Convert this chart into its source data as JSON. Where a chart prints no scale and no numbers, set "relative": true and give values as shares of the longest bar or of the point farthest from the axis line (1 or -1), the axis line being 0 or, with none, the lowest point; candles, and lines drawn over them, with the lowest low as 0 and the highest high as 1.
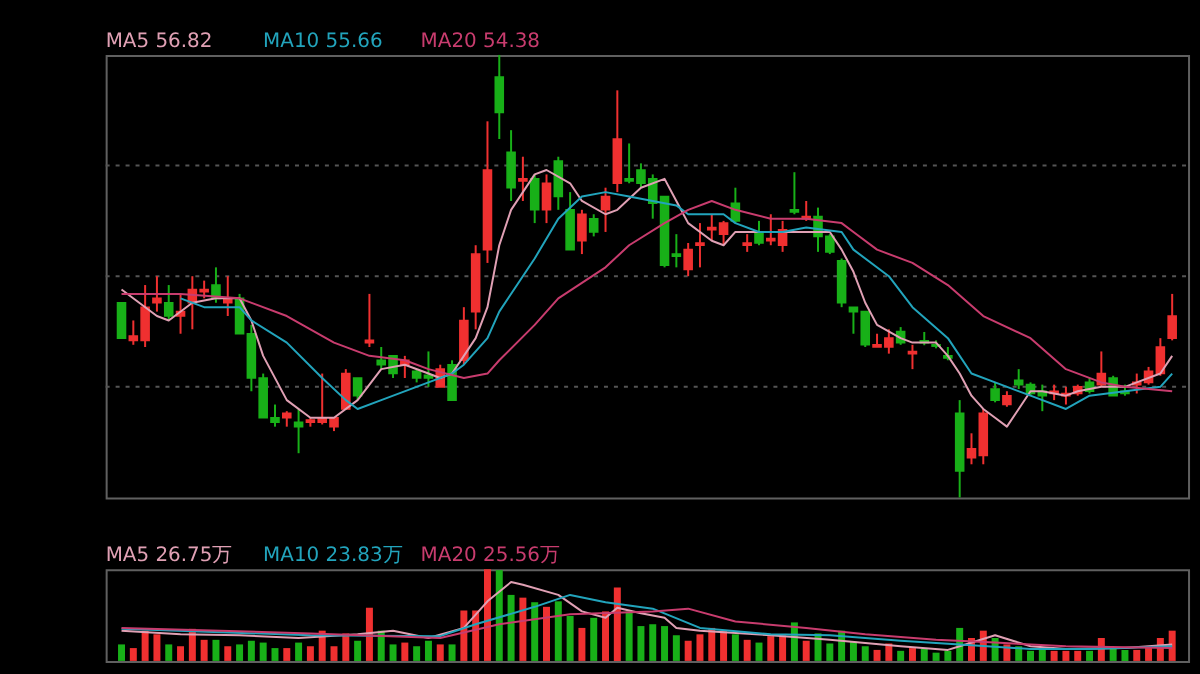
{
  "chart_data": [
    {
      "type": "candlestick",
      "relative": true,
      "grid": true,
      "categories": [
        null,
        null,
        null,
        null,
        null,
        null,
        null,
        null,
        null,
        null,
        null,
        null,
        null,
        null,
        null,
        null,
        null,
        null,
        null,
        null,
        null,
        null,
        null,
        null,
        null,
        null,
        null,
        null,
        null,
        null,
        null,
        null,
        null,
        null,
        null,
        null,
        null,
        null,
        null,
        null,
        null,
        null,
        null,
        null,
        null,
        null,
        null,
        null,
        null,
        null,
        null,
        null,
        null,
        null,
        null,
        null,
        null,
        null,
        null,
        null,
        null,
        null,
        null,
        null,
        null,
        null,
        null,
        null,
        null,
        null,
        null,
        null,
        null,
        null,
        null,
        null,
        null,
        null,
        null,
        null,
        null,
        null,
        null,
        null,
        null,
        null,
        null,
        null,
        null,
        null
      ],
      "ohlc": [
        [
          0.44,
          0.44,
          0.36,
          0.36
        ],
        [
          0.355,
          0.4,
          0.345,
          0.365
        ],
        [
          0.355,
          0.48,
          0.34,
          0.43
        ],
        [
          0.44,
          0.5,
          0.42,
          0.45
        ],
        [
          0.44,
          0.48,
          0.4,
          0.41
        ],
        [
          0.41,
          0.46,
          0.37,
          0.42
        ],
        [
          0.44,
          0.5,
          0.38,
          0.47
        ],
        [
          0.465,
          0.49,
          0.45,
          0.47
        ],
        [
          0.48,
          0.52,
          0.44,
          0.45
        ],
        [
          0.44,
          0.5,
          0.41,
          0.45
        ],
        [
          0.45,
          0.46,
          0.37,
          0.37
        ],
        [
          0.37,
          0.39,
          0.24,
          0.27
        ],
        [
          0.27,
          0.28,
          0.18,
          0.18
        ],
        [
          0.18,
          0.21,
          0.16,
          0.17
        ],
        [
          0.18,
          0.195,
          0.16,
          0.19
        ],
        [
          0.17,
          0.2,
          0.1,
          0.16
        ],
        [
          0.17,
          0.18,
          0.16,
          0.175
        ],
        [
          0.17,
          0.28,
          0.165,
          0.18
        ],
        [
          0.16,
          0.18,
          0.15,
          0.18
        ],
        [
          0.2,
          0.29,
          0.2,
          0.28
        ],
        [
          0.27,
          0.27,
          0.22,
          0.23
        ],
        [
          0.35,
          0.46,
          0.34,
          0.355
        ],
        [
          0.31,
          0.34,
          0.29,
          0.3
        ],
        [
          0.32,
          0.32,
          0.27,
          0.28
        ],
        [
          0.3,
          0.32,
          0.27,
          0.31
        ],
        [
          0.285,
          0.29,
          0.26,
          0.27
        ],
        [
          0.276,
          0.33,
          0.25,
          0.27
        ],
        [
          0.25,
          0.3,
          0.25,
          0.29
        ],
        [
          0.3,
          0.31,
          0.22,
          0.22
        ],
        [
          0.31,
          0.43,
          0.3,
          0.4
        ],
        [
          0.42,
          0.57,
          0.38,
          0.55
        ],
        [
          0.56,
          0.85,
          0.53,
          0.74
        ],
        [
          0.95,
          1.0,
          0.81,
          0.87
        ],
        [
          0.78,
          0.83,
          0.67,
          0.7
        ],
        [
          0.715,
          0.77,
          0.67,
          0.72
        ],
        [
          0.72,
          0.73,
          0.62,
          0.65
        ],
        [
          0.65,
          0.73,
          0.62,
          0.71
        ],
        [
          0.76,
          0.77,
          0.65,
          0.68
        ],
        [
          0.65,
          0.69,
          0.56,
          0.56
        ],
        [
          0.58,
          0.65,
          0.55,
          0.64
        ],
        [
          0.63,
          0.64,
          0.59,
          0.6
        ],
        [
          0.65,
          0.7,
          0.6,
          0.68
        ],
        [
          0.71,
          0.92,
          0.69,
          0.81
        ],
        [
          0.72,
          0.8,
          0.71,
          0.715
        ],
        [
          0.74,
          0.755,
          0.7,
          0.71
        ],
        [
          0.72,
          0.73,
          0.63,
          0.665
        ],
        [
          0.68,
          0.68,
          0.52,
          0.525
        ],
        [
          0.55,
          0.595,
          0.52,
          0.545
        ],
        [
          0.515,
          0.575,
          0.5,
          0.56
        ],
        [
          0.57,
          0.62,
          0.52,
          0.575
        ],
        [
          0.605,
          0.64,
          0.58,
          0.61
        ],
        [
          0.595,
          0.625,
          0.57,
          0.62
        ],
        [
          0.665,
          0.7,
          0.62,
          0.625
        ],
        [
          0.57,
          0.595,
          0.555,
          0.575
        ],
        [
          0.6,
          0.625,
          0.57,
          0.575
        ],
        [
          0.58,
          0.64,
          0.57,
          0.585
        ],
        [
          0.57,
          0.625,
          0.555,
          0.605
        ],
        [
          0.65,
          0.735,
          0.64,
          0.645
        ],
        [
          0.63,
          0.67,
          0.625,
          0.635
        ],
        [
          0.635,
          0.655,
          0.555,
          0.59
        ],
        [
          0.59,
          0.595,
          0.55,
          0.555
        ],
        [
          0.535,
          0.54,
          0.43,
          0.44
        ],
        [
          0.43,
          0.43,
          0.37,
          0.42
        ],
        [
          0.42,
          0.42,
          0.34,
          0.345
        ],
        [
          0.34,
          0.37,
          0.34,
          0.345
        ],
        [
          0.34,
          0.38,
          0.325,
          0.36
        ],
        [
          0.375,
          0.385,
          0.345,
          0.35
        ],
        [
          0.325,
          0.345,
          0.29,
          0.33
        ],
        [
          0.354,
          0.374,
          0.344,
          0.35
        ],
        [
          0.345,
          0.355,
          0.337,
          0.342
        ],
        [
          0.32,
          0.34,
          0.31,
          0.315
        ],
        [
          0.19,
          0.22,
          0.0,
          0.06
        ],
        [
          0.09,
          0.145,
          0.075,
          0.11
        ],
        [
          0.095,
          0.2,
          0.075,
          0.19
        ],
        [
          0.245,
          0.26,
          0.215,
          0.22
        ],
        [
          0.21,
          0.24,
          0.205,
          0.23
        ],
        [
          0.265,
          0.29,
          0.245,
          0.255
        ],
        [
          0.255,
          0.26,
          0.23,
          0.235
        ],
        [
          0.24,
          0.255,
          0.195,
          0.23
        ],
        [
          0.235,
          0.255,
          0.22,
          0.24
        ],
        [
          0.23,
          0.25,
          0.21,
          0.235
        ],
        [
          0.235,
          0.255,
          0.23,
          0.25
        ],
        [
          0.26,
          0.27,
          0.235,
          0.24
        ],
        [
          0.255,
          0.33,
          0.25,
          0.28
        ],
        [
          0.27,
          0.275,
          0.23,
          0.23
        ],
        [
          0.24,
          0.255,
          0.23,
          0.235
        ],
        [
          0.255,
          0.28,
          0.235,
          0.26
        ],
        [
          0.26,
          0.295,
          0.255,
          0.285
        ],
        [
          0.28,
          0.36,
          0.275,
          0.34
        ],
        [
          0.36,
          0.46,
          0.355,
          0.41
        ]
      ],
      "colors": [
        "#18b018",
        "#f03030",
        "#f03030",
        "#f03030",
        "#18b018",
        "#f03030",
        "#f03030",
        "#f03030",
        "#18b018",
        "#f03030",
        "#18b018",
        "#18b018",
        "#18b018",
        "#18b018",
        "#f03030",
        "#18b018",
        "#f03030",
        "#f03030",
        "#f03030",
        "#f03030",
        "#18b018",
        "#f03030",
        "#18b018",
        "#18b018",
        "#f03030",
        "#18b018",
        "#18b018",
        "#f03030",
        "#18b018",
        "#f03030",
        "#f03030",
        "#f03030",
        "#18b018",
        "#18b018",
        "#f03030",
        "#18b018",
        "#f03030",
        "#18b018",
        "#18b018",
        "#f03030",
        "#18b018",
        "#f03030",
        "#f03030",
        "#18b018",
        "#18b018",
        "#18b018",
        "#18b018",
        "#18b018",
        "#f03030",
        "#f03030",
        "#f03030",
        "#f03030",
        "#18b018",
        "#f03030",
        "#18b018",
        "#f03030",
        "#f03030",
        "#18b018",
        "#f03030",
        "#18b018",
        "#18b018",
        "#18b018",
        "#18b018",
        "#18b018",
        "#f03030",
        "#f03030",
        "#18b018",
        "#f03030",
        "#18b018",
        "#18b018",
        "#18b018",
        "#18b018",
        "#f03030",
        "#f03030",
        "#18b018",
        "#f03030",
        "#18b018",
        "#18b018",
        "#18b018",
        "#f03030",
        "#f03030",
        "#f03030",
        "#18b018",
        "#f03030",
        "#18b018",
        "#18b018",
        "#f03030",
        "#f03030",
        "#f03030",
        "#f03030"
      ],
      "series": [
        {
          "name": "MA5 56.82",
          "type": "line",
          "color": "#e0a0b4",
          "values": [
            0.47,
            null,
            null,
            0.41,
            0.4,
            null,
            0.44,
            null,
            0.45,
            null,
            0.45,
            0.4,
            0.32,
            null,
            0.22,
            null,
            0.18,
            null,
            0.18,
            null,
            0.22,
            null,
            0.29,
            null,
            0.3,
            null,
            0.28,
            0.27,
            0.28,
            0.32,
            0.36,
            0.43,
            0.57,
            0.65,
            null,
            0.73,
            0.74,
            null,
            0.71,
            0.67,
            null,
            0.64,
            0.65,
            null,
            0.7,
            null,
            0.72,
            0.67,
            0.62,
            null,
            0.58,
            0.57,
            0.6,
            null,
            0.6,
            null,
            0.6,
            null,
            0.6,
            null,
            0.6,
            0.56,
            0.51,
            0.44,
            0.39,
            null,
            0.36,
            0.35,
            null,
            0.35,
            0.32,
            0.28,
            0.23,
            0.2,
            0.18,
            0.16,
            0.2,
            0.24,
            0.24,
            null,
            0.23,
            0.24,
            null,
            0.25,
            null,
            0.25,
            0.26,
            null,
            0.28,
            0.32
          ]
        },
        {
          "name": "MA10 55.66",
          "type": "line",
          "color": "#22a4bc",
          "values": [
            null,
            null,
            null,
            null,
            null,
            0.45,
            null,
            0.43,
            null,
            null,
            0.43,
            0.4,
            null,
            null,
            0.35,
            null,
            null,
            0.27,
            null,
            0.22,
            0.2,
            null,
            0.22,
            null,
            null,
            null,
            0.26,
            null,
            0.28,
            0.3,
            null,
            0.36,
            0.42,
            null,
            null,
            0.54,
            null,
            0.63,
            null,
            0.68,
            null,
            0.69,
            null,
            0.68,
            null,
            0.67,
            null,
            0.66,
            0.64,
            null,
            null,
            0.64,
            0.62,
            null,
            0.6,
            null,
            0.6,
            null,
            0.61,
            null,
            null,
            0.6,
            0.56,
            null,
            null,
            0.5,
            null,
            0.43,
            null,
            null,
            0.36,
            null,
            0.28,
            null,
            0.26,
            null,
            null,
            0.23,
            null,
            null,
            0.2,
            null,
            0.23,
            null,
            null,
            0.24,
            null,
            null,
            0.25,
            0.28
          ]
        },
        {
          "name": "MA20 54.38",
          "type": "line",
          "color": "#c83c6e",
          "values": [
            0.46,
            null,
            null,
            null,
            null,
            0.46,
            null,
            null,
            null,
            null,
            0.45,
            null,
            null,
            null,
            0.41,
            null,
            null,
            null,
            0.35,
            null,
            null,
            0.32,
            null,
            null,
            0.31,
            null,
            0.29,
            null,
            null,
            0.27,
            null,
            0.28,
            0.31,
            null,
            null,
            0.39,
            null,
            0.45,
            null,
            null,
            null,
            0.52,
            null,
            0.57,
            null,
            null,
            0.62,
            null,
            0.65,
            null,
            0.67,
            null,
            0.65,
            null,
            null,
            0.63,
            null,
            null,
            0.63,
            null,
            null,
            0.62,
            0.6,
            null,
            0.56,
            null,
            null,
            0.53,
            null,
            null,
            0.48,
            null,
            null,
            0.41,
            null,
            null,
            null,
            0.36,
            null,
            null,
            0.29,
            null,
            null,
            0.26,
            null,
            0.25,
            null,
            null,
            null,
            0.24
          ]
        }
      ]
    },
    {
      "type": "bar",
      "relative": true,
      "categories": [
        null,
        null,
        null,
        null,
        null,
        null,
        null,
        null,
        null,
        null,
        null,
        null,
        null,
        null,
        null,
        null,
        null,
        null,
        null,
        null,
        null,
        null,
        null,
        null,
        null,
        null,
        null,
        null,
        null,
        null,
        null,
        null,
        null,
        null,
        null,
        null,
        null,
        null,
        null,
        null,
        null,
        null,
        null,
        null,
        null,
        null,
        null,
        null,
        null,
        null,
        null,
        null,
        null,
        null,
        null,
        null,
        null,
        null,
        null,
        null,
        null,
        null,
        null,
        null,
        null,
        null,
        null,
        null,
        null,
        null,
        null,
        null,
        null,
        null,
        null,
        null,
        null,
        null,
        null,
        null,
        null,
        null,
        null,
        null,
        null,
        null,
        null,
        null,
        null,
        null
      ],
      "values": [
        0.18,
        0.14,
        0.33,
        0.29,
        0.18,
        0.16,
        0.35,
        0.23,
        0.23,
        0.16,
        0.18,
        0.22,
        0.2,
        0.14,
        0.14,
        0.2,
        0.16,
        0.33,
        0.16,
        0.3,
        0.22,
        0.58,
        0.33,
        0.18,
        0.2,
        0.16,
        0.22,
        0.18,
        0.18,
        0.55,
        0.55,
        1.0,
        0.99,
        0.72,
        0.69,
        0.64,
        0.59,
        0.65,
        0.49,
        0.36,
        0.47,
        0.54,
        0.8,
        0.54,
        0.38,
        0.4,
        0.38,
        0.28,
        0.22,
        0.29,
        0.36,
        0.33,
        0.29,
        0.23,
        0.2,
        0.27,
        0.28,
        0.42,
        0.22,
        0.3,
        0.19,
        0.33,
        0.21,
        0.16,
        0.12,
        0.19,
        0.11,
        0.14,
        0.13,
        0.09,
        0.11,
        0.36,
        0.25,
        0.33,
        0.25,
        0.18,
        0.16,
        0.11,
        0.12,
        0.11,
        0.11,
        0.11,
        0.11,
        0.25,
        0.13,
        0.12,
        0.12,
        0.14,
        0.25,
        0.33
      ],
      "colors": [
        "#18b018",
        "#f03030",
        "#f03030",
        "#f03030",
        "#18b018",
        "#f03030",
        "#f03030",
        "#f03030",
        "#18b018",
        "#f03030",
        "#18b018",
        "#18b018",
        "#18b018",
        "#18b018",
        "#f03030",
        "#18b018",
        "#f03030",
        "#f03030",
        "#f03030",
        "#f03030",
        "#18b018",
        "#f03030",
        "#18b018",
        "#18b018",
        "#f03030",
        "#18b018",
        "#18b018",
        "#f03030",
        "#18b018",
        "#f03030",
        "#f03030",
        "#f03030",
        "#18b018",
        "#18b018",
        "#f03030",
        "#18b018",
        "#f03030",
        "#18b018",
        "#18b018",
        "#f03030",
        "#18b018",
        "#f03030",
        "#f03030",
        "#18b018",
        "#18b018",
        "#18b018",
        "#18b018",
        "#18b018",
        "#f03030",
        "#f03030",
        "#f03030",
        "#f03030",
        "#18b018",
        "#f03030",
        "#18b018",
        "#f03030",
        "#f03030",
        "#18b018",
        "#f03030",
        "#18b018",
        "#18b018",
        "#18b018",
        "#18b018",
        "#18b018",
        "#f03030",
        "#f03030",
        "#18b018",
        "#f03030",
        "#18b018",
        "#18b018",
        "#18b018",
        "#18b018",
        "#f03030",
        "#f03030",
        "#18b018",
        "#f03030",
        "#18b018",
        "#18b018",
        "#18b018",
        "#f03030",
        "#f03030",
        "#f03030",
        "#18b018",
        "#f03030",
        "#18b018",
        "#18b018",
        "#f03030",
        "#f03030",
        "#f03030",
        "#f03030"
      ],
      "series": [
        {
          "name": "MA5 26.75万",
          "type": "line",
          "color": "#e0a0b4",
          "values": [
            0.33,
            null,
            null,
            null,
            null,
            0.29,
            null,
            null,
            null,
            null,
            0.28,
            null,
            null,
            null,
            null,
            0.25,
            null,
            null,
            null,
            null,
            0.29,
            null,
            null,
            0.33,
            null,
            null,
            0.25,
            null,
            null,
            0.36,
            null,
            0.65,
            null,
            0.86,
            0.83,
            null,
            null,
            0.72,
            null,
            0.54,
            null,
            0.47,
            0.58,
            null,
            0.52,
            null,
            0.47,
            0.36,
            null,
            0.33,
            null,
            null,
            null,
            null,
            null,
            0.28,
            null,
            null,
            null,
            null,
            0.23,
            null,
            null,
            null,
            null,
            null,
            0.16,
            null,
            null,
            null,
            0.12,
            0.16,
            null,
            null,
            0.28,
            null,
            null,
            0.16,
            null,
            null,
            0.13,
            null,
            null,
            null,
            null,
            0.14,
            null,
            null,
            null,
            0.18
          ]
        },
        {
          "name": "MA10 23.83万",
          "type": "line",
          "color": "#22a4bc",
          "values": [
            0.35,
            null,
            null,
            null,
            null,
            null,
            null,
            null,
            null,
            null,
            null,
            null,
            null,
            null,
            null,
            null,
            0.28,
            null,
            null,
            null,
            null,
            null,
            null,
            null,
            null,
            null,
            null,
            0.27,
            null,
            null,
            0.4,
            null,
            null,
            null,
            null,
            0.59,
            null,
            null,
            0.72,
            null,
            null,
            0.64,
            null,
            null,
            null,
            0.57,
            null,
            null,
            null,
            0.36,
            null,
            null,
            null,
            null,
            null,
            0.29,
            null,
            null,
            null,
            null,
            0.28,
            null,
            null,
            null,
            null,
            null,
            0.22,
            null,
            null,
            null,
            null,
            0.18,
            null,
            null,
            null,
            null,
            null,
            0.13,
            null,
            null,
            null,
            null,
            0.13,
            null,
            null,
            null,
            null,
            null,
            null,
            0.16
          ]
        },
        {
          "name": "MA20 25.56万",
          "type": "line",
          "color": "#c83c6e",
          "values": [
            0.36,
            null,
            null,
            null,
            null,
            null,
            null,
            null,
            null,
            null,
            null,
            null,
            null,
            null,
            null,
            null,
            0.3,
            null,
            null,
            null,
            null,
            null,
            null,
            null,
            null,
            null,
            null,
            0.25,
            null,
            null,
            null,
            null,
            0.4,
            null,
            null,
            null,
            null,
            null,
            0.51,
            null,
            null,
            null,
            null,
            null,
            null,
            0.54,
            null,
            null,
            0.57,
            null,
            null,
            null,
            0.43,
            null,
            null,
            null,
            null,
            null,
            0.36,
            null,
            null,
            null,
            null,
            0.29,
            null,
            null,
            null,
            null,
            null,
            0.23,
            null,
            null,
            null,
            null,
            0.2,
            null,
            null,
            null,
            null,
            null,
            0.16,
            null,
            null,
            null,
            null,
            null,
            null,
            null,
            null,
            0.14
          ]
        }
      ]
    }
  ]
}
